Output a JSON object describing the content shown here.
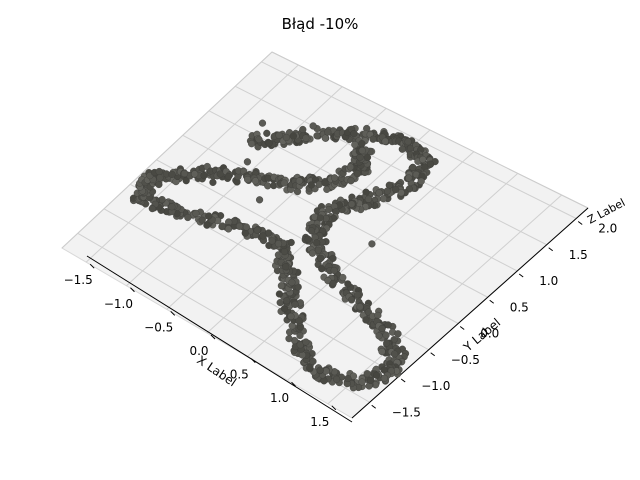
{
  "chart_data": {
    "type": "scatter",
    "title": "Błąd -10%",
    "xlabel": "X Label",
    "ylabel": "Y Label",
    "zlabel": "Z Label",
    "x_ticks": [
      "−1.5",
      "−1.0",
      "−0.5",
      "0.0",
      "0.5",
      "1.0",
      "1.5"
    ],
    "y_ticks": [
      "−1.5",
      "−1.0",
      "−0.5",
      "0.0",
      "0.5",
      "1.0",
      "1.5",
      "2.0"
    ],
    "x_range": [
      -1.8,
      1.8
    ],
    "y_range": [
      -1.8,
      2.2
    ],
    "grid": true,
    "marker_color": "#5a5a55",
    "series": [
      {
        "description_of_shape": "trefoil-like knotted tube of scattered points",
        "points": [
          {
            "x": -1.2,
            "y": 0.9
          },
          {
            "x": -0.9,
            "y": 1.3
          },
          {
            "x": -0.5,
            "y": 1.7
          },
          {
            "x": -0.1,
            "y": 1.9
          },
          {
            "x": 0.2,
            "y": 1.8
          },
          {
            "x": 0.3,
            "y": 1.4
          },
          {
            "x": 0.1,
            "y": 0.9
          },
          {
            "x": -0.1,
            "y": 0.5
          },
          {
            "x": 0.0,
            "y": 0.1
          },
          {
            "x": 0.4,
            "y": -0.2
          },
          {
            "x": 0.9,
            "y": -0.4
          },
          {
            "x": 1.4,
            "y": -0.6
          },
          {
            "x": 1.7,
            "y": -0.9
          },
          {
            "x": 1.6,
            "y": -1.3
          },
          {
            "x": 1.2,
            "y": -1.5
          },
          {
            "x": 0.8,
            "y": -1.3
          },
          {
            "x": 0.4,
            "y": -0.9
          },
          {
            "x": 0.1,
            "y": -0.5
          },
          {
            "x": -0.2,
            "y": -0.2
          },
          {
            "x": -0.7,
            "y": -0.3
          },
          {
            "x": -1.2,
            "y": -0.5
          },
          {
            "x": -1.6,
            "y": -0.6
          },
          {
            "x": -1.7,
            "y": -0.3
          },
          {
            "x": -1.4,
            "y": 0.1
          },
          {
            "x": -1.0,
            "y": 0.4
          },
          {
            "x": -0.6,
            "y": 0.6
          },
          {
            "x": -0.3,
            "y": 0.9
          },
          {
            "x": -0.2,
            "y": 1.3
          },
          {
            "x": -0.4,
            "y": 1.6
          }
        ]
      }
    ]
  }
}
